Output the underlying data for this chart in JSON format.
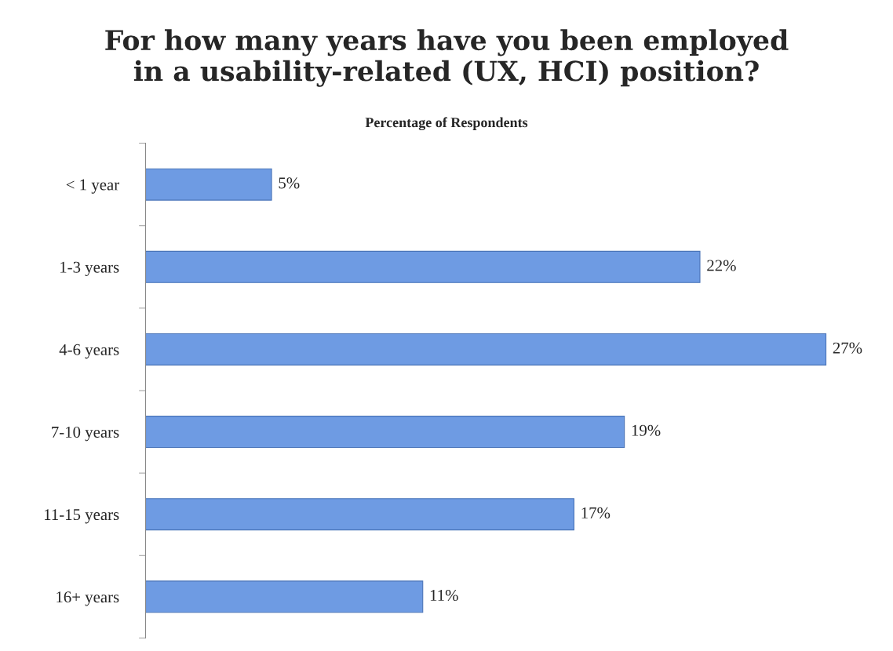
{
  "chart_data": {
    "type": "bar",
    "orientation": "horizontal",
    "title": "For how many years have you been employed\nin a usability-related (UX, HCI) position?",
    "subtitle": "Percentage of Respondents",
    "categories": [
      "< 1 year",
      "1-3 years",
      "4-6 years",
      "7-10 years",
      "11-15 years",
      "16+ years"
    ],
    "values": [
      5,
      22,
      27,
      19,
      17,
      11
    ],
    "value_labels": [
      "5%",
      "22%",
      "27%",
      "19%",
      "17%",
      "11%"
    ],
    "color": "#6e9be3",
    "tick_labels": "y",
    "grid": false,
    "legend": false
  }
}
